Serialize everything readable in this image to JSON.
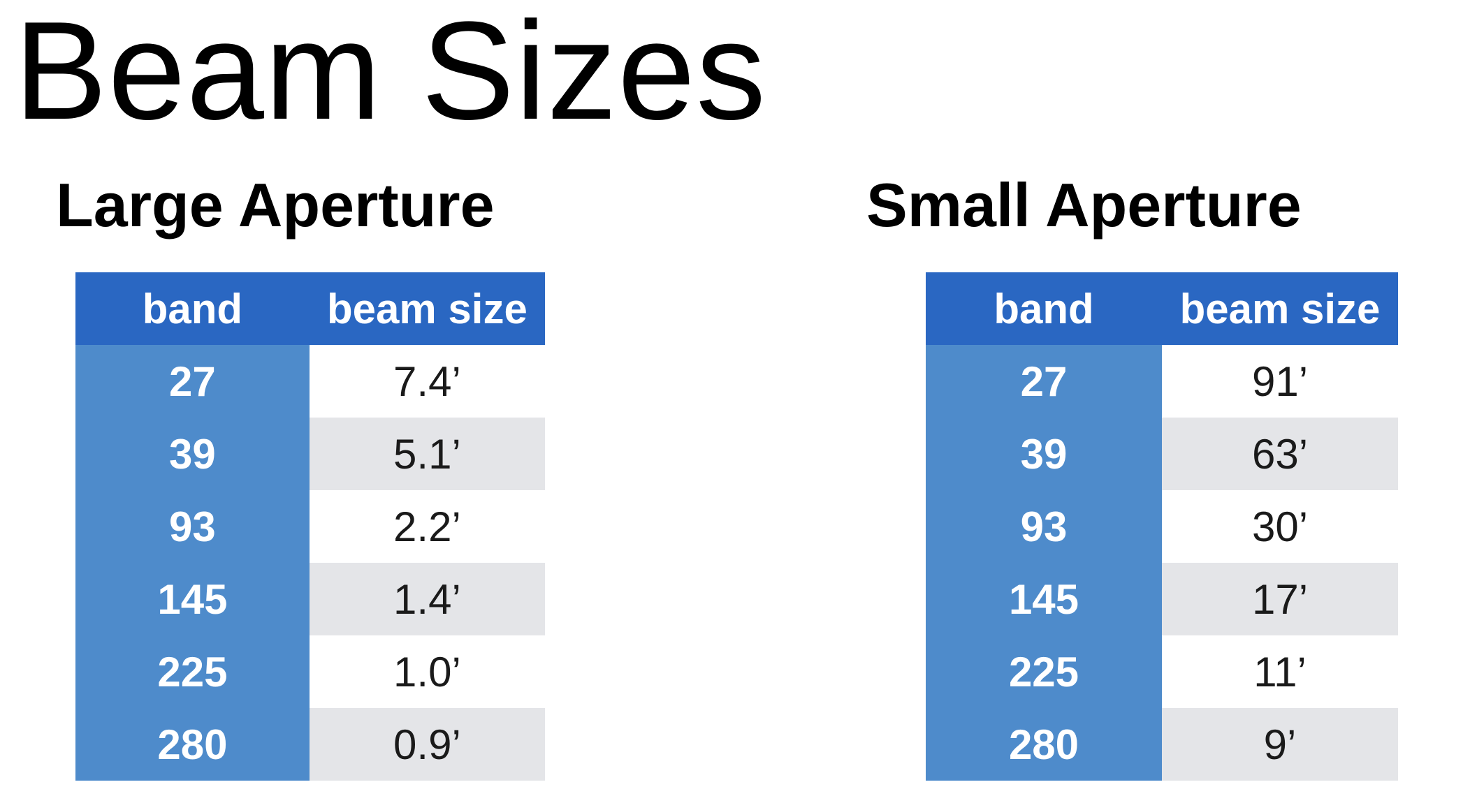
{
  "title": "Beam Sizes",
  "large_aperture": {
    "heading": "Large Aperture",
    "columns": [
      "band",
      "beam size"
    ],
    "rows": [
      {
        "band": "27",
        "beam_size": "7.4’"
      },
      {
        "band": "39",
        "beam_size": "5.1’"
      },
      {
        "band": "93",
        "beam_size": "2.2’"
      },
      {
        "band": "145",
        "beam_size": "1.4’"
      },
      {
        "band": "225",
        "beam_size": "1.0’"
      },
      {
        "band": "280",
        "beam_size": "0.9’"
      }
    ]
  },
  "small_aperture": {
    "heading": "Small Aperture",
    "columns": [
      "band",
      "beam size"
    ],
    "rows": [
      {
        "band": "27",
        "beam_size": "91’"
      },
      {
        "band": "39",
        "beam_size": "63’"
      },
      {
        "band": "93",
        "beam_size": "30’"
      },
      {
        "band": "145",
        "beam_size": "17’"
      },
      {
        "band": "225",
        "beam_size": "11’"
      },
      {
        "band": "280",
        "beam_size": "9’"
      }
    ]
  },
  "colors": {
    "header_bg": "#2a67c2",
    "band_bg": "#4e8bcb",
    "stripe_bg": "#e4e5e8"
  }
}
